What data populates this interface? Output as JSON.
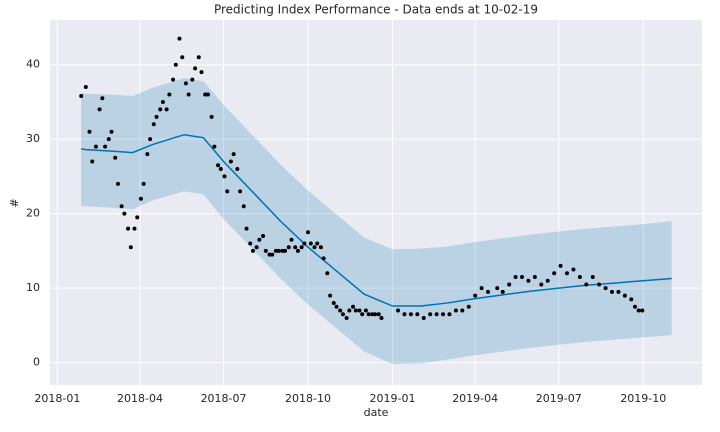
{
  "chart_data": {
    "type": "forecast",
    "title": "Predicting Index Performance - Data ends at 10-02-19",
    "xlabel": "date",
    "ylabel": "#",
    "xlim": [
      "2017-12-24",
      "2019-12-04"
    ],
    "xticks": [
      {
        "value": "2018-01-01",
        "label": "2018-01"
      },
      {
        "value": "2018-04-01",
        "label": "2018-04"
      },
      {
        "value": "2018-07-01",
        "label": "2018-07"
      },
      {
        "value": "2018-10-01",
        "label": "2018-10"
      },
      {
        "value": "2019-01-01",
        "label": "2019-01"
      },
      {
        "value": "2019-04-01",
        "label": "2019-04"
      },
      {
        "value": "2019-07-01",
        "label": "2019-07"
      },
      {
        "value": "2019-10-01",
        "label": "2019-10"
      }
    ],
    "ylim": [
      -3,
      46
    ],
    "yticks": [
      0,
      10,
      20,
      30,
      40
    ],
    "grid": true,
    "observed": {
      "color": "#000000",
      "x": [
        "2018-01-27",
        "2018-02-01",
        "2018-02-05",
        "2018-02-08",
        "2018-02-12",
        "2018-02-16",
        "2018-02-19",
        "2018-02-22",
        "2018-02-26",
        "2018-03-01",
        "2018-03-05",
        "2018-03-08",
        "2018-03-12",
        "2018-03-15",
        "2018-03-19",
        "2018-03-22",
        "2018-03-26",
        "2018-03-29",
        "2018-04-02",
        "2018-04-05",
        "2018-04-09",
        "2018-04-12",
        "2018-04-16",
        "2018-04-19",
        "2018-04-23",
        "2018-04-26",
        "2018-04-30",
        "2018-05-03",
        "2018-05-07",
        "2018-05-10",
        "2018-05-14",
        "2018-05-17",
        "2018-05-21",
        "2018-05-24",
        "2018-05-28",
        "2018-05-31",
        "2018-06-04",
        "2018-06-07",
        "2018-06-11",
        "2018-06-14",
        "2018-06-18",
        "2018-06-21",
        "2018-06-25",
        "2018-06-28",
        "2018-07-02",
        "2018-07-05",
        "2018-07-09",
        "2018-07-12",
        "2018-07-16",
        "2018-07-19",
        "2018-07-23",
        "2018-07-26",
        "2018-07-30",
        "2018-08-02",
        "2018-08-06",
        "2018-08-09",
        "2018-08-13",
        "2018-08-16",
        "2018-08-20",
        "2018-08-23",
        "2018-08-27",
        "2018-08-30",
        "2018-09-03",
        "2018-09-06",
        "2018-09-10",
        "2018-09-13",
        "2018-09-17",
        "2018-09-20",
        "2018-09-24",
        "2018-09-27",
        "2018-10-01",
        "2018-10-04",
        "2018-10-08",
        "2018-10-11",
        "2018-10-15",
        "2018-10-18",
        "2018-10-22",
        "2018-10-25",
        "2018-10-29",
        "2018-11-01",
        "2018-11-05",
        "2018-11-08",
        "2018-11-12",
        "2018-11-15",
        "2018-11-19",
        "2018-11-22",
        "2018-11-26",
        "2018-11-29",
        "2018-12-03",
        "2018-12-06",
        "2018-12-10",
        "2018-12-13",
        "2018-12-17",
        "2018-12-20",
        "2019-01-07",
        "2019-01-14",
        "2019-01-21",
        "2019-01-28",
        "2019-02-04",
        "2019-02-11",
        "2019-02-18",
        "2019-02-25",
        "2019-03-04",
        "2019-03-11",
        "2019-03-18",
        "2019-03-25",
        "2019-04-01",
        "2019-04-08",
        "2019-04-15",
        "2019-04-25",
        "2019-05-01",
        "2019-05-08",
        "2019-05-15",
        "2019-05-22",
        "2019-05-29",
        "2019-06-05",
        "2019-06-12",
        "2019-06-19",
        "2019-06-26",
        "2019-07-03",
        "2019-07-10",
        "2019-07-17",
        "2019-07-24",
        "2019-07-31",
        "2019-08-07",
        "2019-08-14",
        "2019-08-21",
        "2019-08-28",
        "2019-09-04",
        "2019-09-11",
        "2019-09-18",
        "2019-09-22",
        "2019-09-26",
        "2019-09-30"
      ],
      "values": [
        35.8,
        37,
        31,
        27,
        29,
        34,
        35.5,
        29,
        30,
        31,
        27.5,
        24,
        21,
        20,
        18,
        15.5,
        18,
        19.5,
        22,
        24,
        28,
        30,
        32,
        33,
        34,
        35,
        34,
        36,
        38,
        40,
        43.5,
        41,
        37.5,
        36,
        38,
        39.5,
        41,
        39,
        36,
        36,
        33,
        29,
        26.5,
        26,
        25,
        23,
        27,
        28,
        26,
        23,
        21,
        18,
        16,
        15,
        15.5,
        16.5,
        17,
        15,
        14.5,
        14.5,
        15,
        15,
        15,
        15,
        15.5,
        16.5,
        15.5,
        15,
        15.5,
        16,
        17.5,
        16,
        15.5,
        16,
        15.5,
        14,
        12,
        9,
        8,
        7.5,
        7,
        6.5,
        6,
        7,
        7.5,
        7,
        7,
        6.5,
        7,
        6.5,
        6.5,
        6.5,
        6.5,
        6,
        7,
        6.5,
        6.5,
        6.5,
        6,
        6.5,
        6.5,
        6.5,
        6.5,
        7,
        7,
        7.5,
        9,
        10,
        9.5,
        10,
        9.5,
        10.5,
        11.5,
        11.5,
        11,
        11.5,
        10.5,
        11,
        12,
        13,
        12,
        12.5,
        11.5,
        10.5,
        11.5,
        10.5,
        10,
        9.5,
        9.5,
        9,
        8.5,
        7.5,
        7,
        7
      ]
    },
    "forecast": {
      "color": "#0072b2",
      "band_color": "#0072b2",
      "x": [
        "2018-01-27",
        "2018-02-01",
        "2018-03-01",
        "2018-03-24",
        "2018-04-15",
        "2018-05-19",
        "2018-06-09",
        "2018-07-01",
        "2018-08-01",
        "2018-09-01",
        "2018-10-01",
        "2018-11-01",
        "2018-12-01",
        "2019-01-01",
        "2019-02-01",
        "2019-03-01",
        "2019-04-01",
        "2019-05-01",
        "2019-06-01",
        "2019-07-01",
        "2019-08-01",
        "2019-09-01",
        "2019-10-01",
        "2019-11-01"
      ],
      "values": [
        28.7,
        28.6,
        28.4,
        28.2,
        29.3,
        30.6,
        30.2,
        27,
        23,
        19,
        15.5,
        12.3,
        9.2,
        7.6,
        7.6,
        8,
        8.6,
        9.1,
        9.6,
        10,
        10.4,
        10.7,
        11,
        11.3
      ],
      "lower": [
        21,
        21,
        20.8,
        20.6,
        21.8,
        23,
        22.6,
        19.3,
        15.3,
        11.3,
        7.8,
        4.6,
        1.5,
        -0.2,
        -0.1,
        0.4,
        1,
        1.5,
        2,
        2.4,
        2.8,
        3.1,
        3.4,
        3.7
      ],
      "upper": [
        36.2,
        36.1,
        36,
        35.8,
        36.9,
        38.2,
        37.8,
        34.6,
        30.6,
        26.6,
        23.1,
        19.9,
        16.8,
        15.2,
        15.3,
        15.6,
        16.2,
        16.7,
        17.2,
        17.6,
        18,
        18.3,
        18.6,
        19
      ]
    }
  }
}
